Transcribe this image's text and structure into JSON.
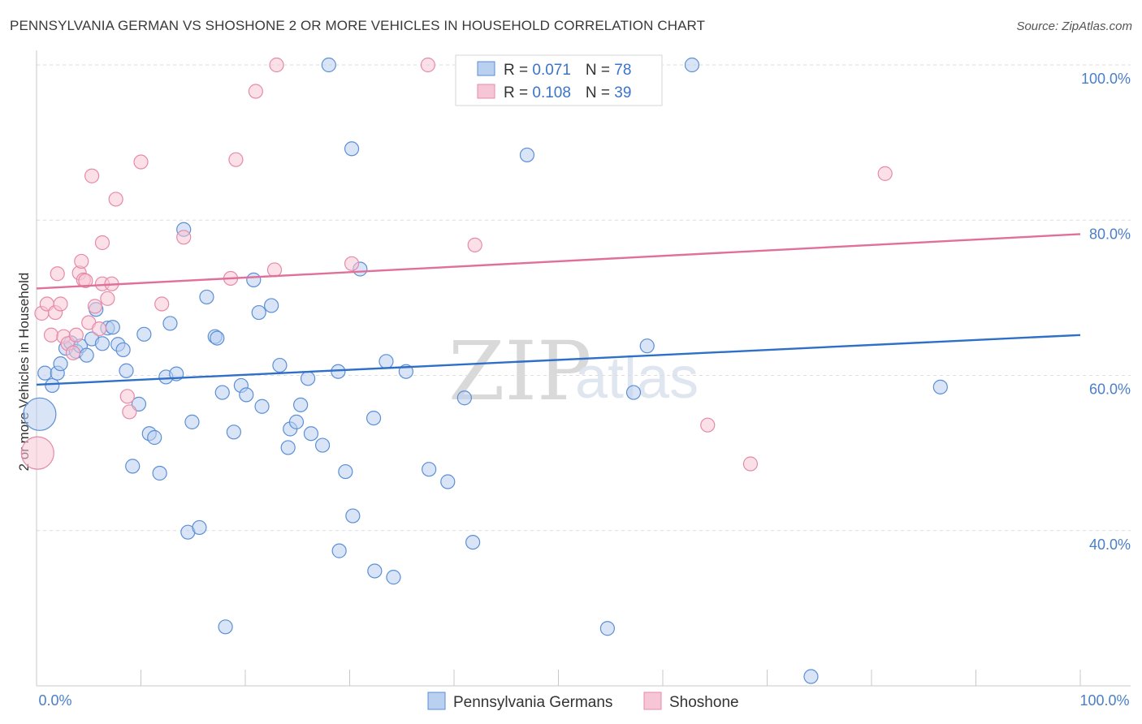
{
  "title": "PENNSYLVANIA GERMAN VS SHOSHONE 2 OR MORE VEHICLES IN HOUSEHOLD CORRELATION CHART",
  "source": "Source: ZipAtlas.com",
  "watermark": {
    "zip": "ZIP",
    "atlas": "atlas"
  },
  "colors": {
    "blue_fill": "#b9d0f0",
    "blue_stroke": "#5b8fd6",
    "blue_line": "#2e6fc9",
    "pink_fill": "#f7c6d6",
    "pink_stroke": "#e68aa8",
    "pink_line": "#e0709a",
    "tick_text": "#4a7fc8",
    "grid": "#dddddd"
  },
  "legend": {
    "rows": [
      {
        "r_label": "R = ",
        "r_value": "0.071",
        "n_label": "N = ",
        "n_value": "78"
      },
      {
        "r_label": "R = ",
        "r_value": "0.108",
        "n_label": "N = ",
        "n_value": "39"
      }
    ]
  },
  "chart_data": {
    "type": "scatter",
    "title": "PENNSYLVANIA GERMAN VS SHOSHONE 2 OR MORE VEHICLES IN HOUSEHOLD CORRELATION CHART",
    "xlabel": "",
    "ylabel": "2 or more Vehicles in Household",
    "xlim": [
      0,
      100
    ],
    "ylim": [
      20,
      102
    ],
    "x_tick_labels": [
      "0.0%",
      "100.0%"
    ],
    "y_ticks": [
      40,
      60,
      80,
      100
    ],
    "y_tick_labels": [
      "40.0%",
      "60.0%",
      "80.0%",
      "100.0%"
    ],
    "grid": true,
    "legend_position": "bottom",
    "series": [
      {
        "name": "Pennsylvania Germans",
        "color": "#b9d0f0",
        "trend": {
          "x": [
            0,
            100
          ],
          "y": [
            58.8,
            65.2
          ]
        },
        "points": [
          {
            "x": 0.3,
            "y": 55.0,
            "big": true
          },
          {
            "x": 0.8,
            "y": 60.3
          },
          {
            "x": 1.5,
            "y": 58.7
          },
          {
            "x": 2.0,
            "y": 60.3
          },
          {
            "x": 2.3,
            "y": 61.5
          },
          {
            "x": 2.8,
            "y": 63.5
          },
          {
            "x": 3.3,
            "y": 64.2
          },
          {
            "x": 3.8,
            "y": 63.1
          },
          {
            "x": 4.2,
            "y": 63.8
          },
          {
            "x": 4.8,
            "y": 62.6
          },
          {
            "x": 5.3,
            "y": 64.7
          },
          {
            "x": 5.7,
            "y": 68.5
          },
          {
            "x": 6.3,
            "y": 64.1
          },
          {
            "x": 6.8,
            "y": 66.1
          },
          {
            "x": 7.3,
            "y": 66.2
          },
          {
            "x": 7.8,
            "y": 64.0
          },
          {
            "x": 8.3,
            "y": 63.3
          },
          {
            "x": 8.6,
            "y": 60.6
          },
          {
            "x": 9.2,
            "y": 48.3
          },
          {
            "x": 9.8,
            "y": 56.3
          },
          {
            "x": 10.3,
            "y": 65.3
          },
          {
            "x": 10.8,
            "y": 52.5
          },
          {
            "x": 11.3,
            "y": 52.0
          },
          {
            "x": 11.8,
            "y": 47.4
          },
          {
            "x": 12.4,
            "y": 59.8
          },
          {
            "x": 12.8,
            "y": 66.7
          },
          {
            "x": 13.4,
            "y": 60.2
          },
          {
            "x": 14.1,
            "y": 78.8
          },
          {
            "x": 14.5,
            "y": 39.8
          },
          {
            "x": 14.9,
            "y": 54.0
          },
          {
            "x": 15.6,
            "y": 40.4
          },
          {
            "x": 16.3,
            "y": 70.1
          },
          {
            "x": 17.1,
            "y": 65.0
          },
          {
            "x": 17.3,
            "y": 64.8
          },
          {
            "x": 17.8,
            "y": 57.8
          },
          {
            "x": 18.1,
            "y": 27.6
          },
          {
            "x": 18.9,
            "y": 52.7
          },
          {
            "x": 19.6,
            "y": 58.7
          },
          {
            "x": 20.1,
            "y": 57.5
          },
          {
            "x": 20.8,
            "y": 72.3
          },
          {
            "x": 21.3,
            "y": 68.1
          },
          {
            "x": 21.6,
            "y": 56.0
          },
          {
            "x": 22.5,
            "y": 69.0
          },
          {
            "x": 23.3,
            "y": 61.3
          },
          {
            "x": 24.1,
            "y": 50.7
          },
          {
            "x": 24.3,
            "y": 53.1
          },
          {
            "x": 24.9,
            "y": 54.0
          },
          {
            "x": 25.3,
            "y": 56.2
          },
          {
            "x": 26.0,
            "y": 59.6
          },
          {
            "x": 26.3,
            "y": 52.5
          },
          {
            "x": 27.4,
            "y": 51.0
          },
          {
            "x": 28.0,
            "y": 100.0
          },
          {
            "x": 29.0,
            "y": 37.4
          },
          {
            "x": 28.9,
            "y": 60.5
          },
          {
            "x": 29.6,
            "y": 47.6
          },
          {
            "x": 30.2,
            "y": 89.2
          },
          {
            "x": 30.3,
            "y": 41.9
          },
          {
            "x": 31.0,
            "y": 73.7
          },
          {
            "x": 32.3,
            "y": 54.5
          },
          {
            "x": 32.4,
            "y": 34.8
          },
          {
            "x": 33.5,
            "y": 61.8
          },
          {
            "x": 34.2,
            "y": 34.0
          },
          {
            "x": 35.4,
            "y": 60.5
          },
          {
            "x": 37.6,
            "y": 47.9
          },
          {
            "x": 39.4,
            "y": 46.3
          },
          {
            "x": 41.0,
            "y": 57.1
          },
          {
            "x": 41.8,
            "y": 38.5
          },
          {
            "x": 47.0,
            "y": 88.4
          },
          {
            "x": 54.7,
            "y": 27.4
          },
          {
            "x": 57.2,
            "y": 57.8
          },
          {
            "x": 58.5,
            "y": 63.8
          },
          {
            "x": 62.8,
            "y": 100.0
          },
          {
            "x": 74.2,
            "y": 21.2
          },
          {
            "x": 86.6,
            "y": 58.5
          }
        ]
      },
      {
        "name": "Shoshone",
        "color": "#f7c6d6",
        "trend": {
          "x": [
            0,
            100
          ],
          "y": [
            71.2,
            78.2
          ]
        },
        "points": [
          {
            "x": 0.1,
            "y": 50.0,
            "big": true
          },
          {
            "x": 0.5,
            "y": 68.0
          },
          {
            "x": 1.0,
            "y": 69.2
          },
          {
            "x": 1.4,
            "y": 65.2
          },
          {
            "x": 1.8,
            "y": 68.1
          },
          {
            "x": 2.0,
            "y": 73.1
          },
          {
            "x": 2.3,
            "y": 69.2
          },
          {
            "x": 2.6,
            "y": 65.0
          },
          {
            "x": 3.0,
            "y": 64.1
          },
          {
            "x": 3.5,
            "y": 62.9
          },
          {
            "x": 3.8,
            "y": 65.2
          },
          {
            "x": 4.1,
            "y": 73.2
          },
          {
            "x": 4.3,
            "y": 74.7
          },
          {
            "x": 4.5,
            "y": 72.3
          },
          {
            "x": 4.7,
            "y": 72.2
          },
          {
            "x": 5.0,
            "y": 66.8
          },
          {
            "x": 5.3,
            "y": 85.7
          },
          {
            "x": 5.6,
            "y": 68.9
          },
          {
            "x": 6.0,
            "y": 66.0
          },
          {
            "x": 6.3,
            "y": 71.8
          },
          {
            "x": 6.3,
            "y": 77.1
          },
          {
            "x": 6.8,
            "y": 69.9
          },
          {
            "x": 7.2,
            "y": 71.8
          },
          {
            "x": 7.6,
            "y": 82.7
          },
          {
            "x": 8.7,
            "y": 57.3
          },
          {
            "x": 8.9,
            "y": 55.3
          },
          {
            "x": 10.0,
            "y": 87.5
          },
          {
            "x": 12.0,
            "y": 69.2
          },
          {
            "x": 14.1,
            "y": 77.8
          },
          {
            "x": 18.6,
            "y": 72.5
          },
          {
            "x": 19.1,
            "y": 87.8
          },
          {
            "x": 21.0,
            "y": 96.6
          },
          {
            "x": 22.8,
            "y": 73.6
          },
          {
            "x": 23.0,
            "y": 100.0
          },
          {
            "x": 30.2,
            "y": 74.4
          },
          {
            "x": 37.5,
            "y": 100.0
          },
          {
            "x": 42.0,
            "y": 76.8
          },
          {
            "x": 64.3,
            "y": 53.6
          },
          {
            "x": 68.4,
            "y": 48.6
          },
          {
            "x": 81.3,
            "y": 86.0
          }
        ]
      }
    ]
  }
}
